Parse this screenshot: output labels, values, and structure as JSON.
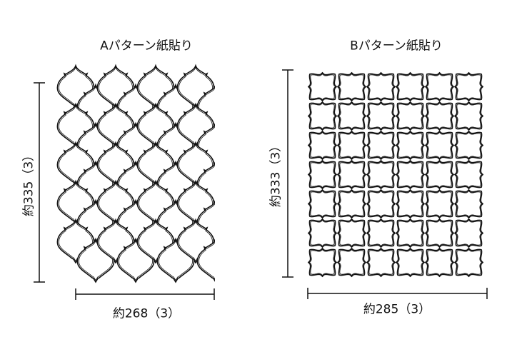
{
  "pattern_a": {
    "title": "Aパターン紙貼り",
    "height_label": "約335（3）",
    "width_label": "約268（3）",
    "tile_shape": "lantern",
    "columns": 4,
    "rows": 5
  },
  "pattern_b": {
    "title": "Bパターン紙貼り",
    "height_label": "約333（3）",
    "width_label": "約285（3）",
    "tile_shape": "square-ogee",
    "columns": 6,
    "rows": 7
  },
  "colors": {
    "line": "#111111",
    "background": "#ffffff"
  }
}
